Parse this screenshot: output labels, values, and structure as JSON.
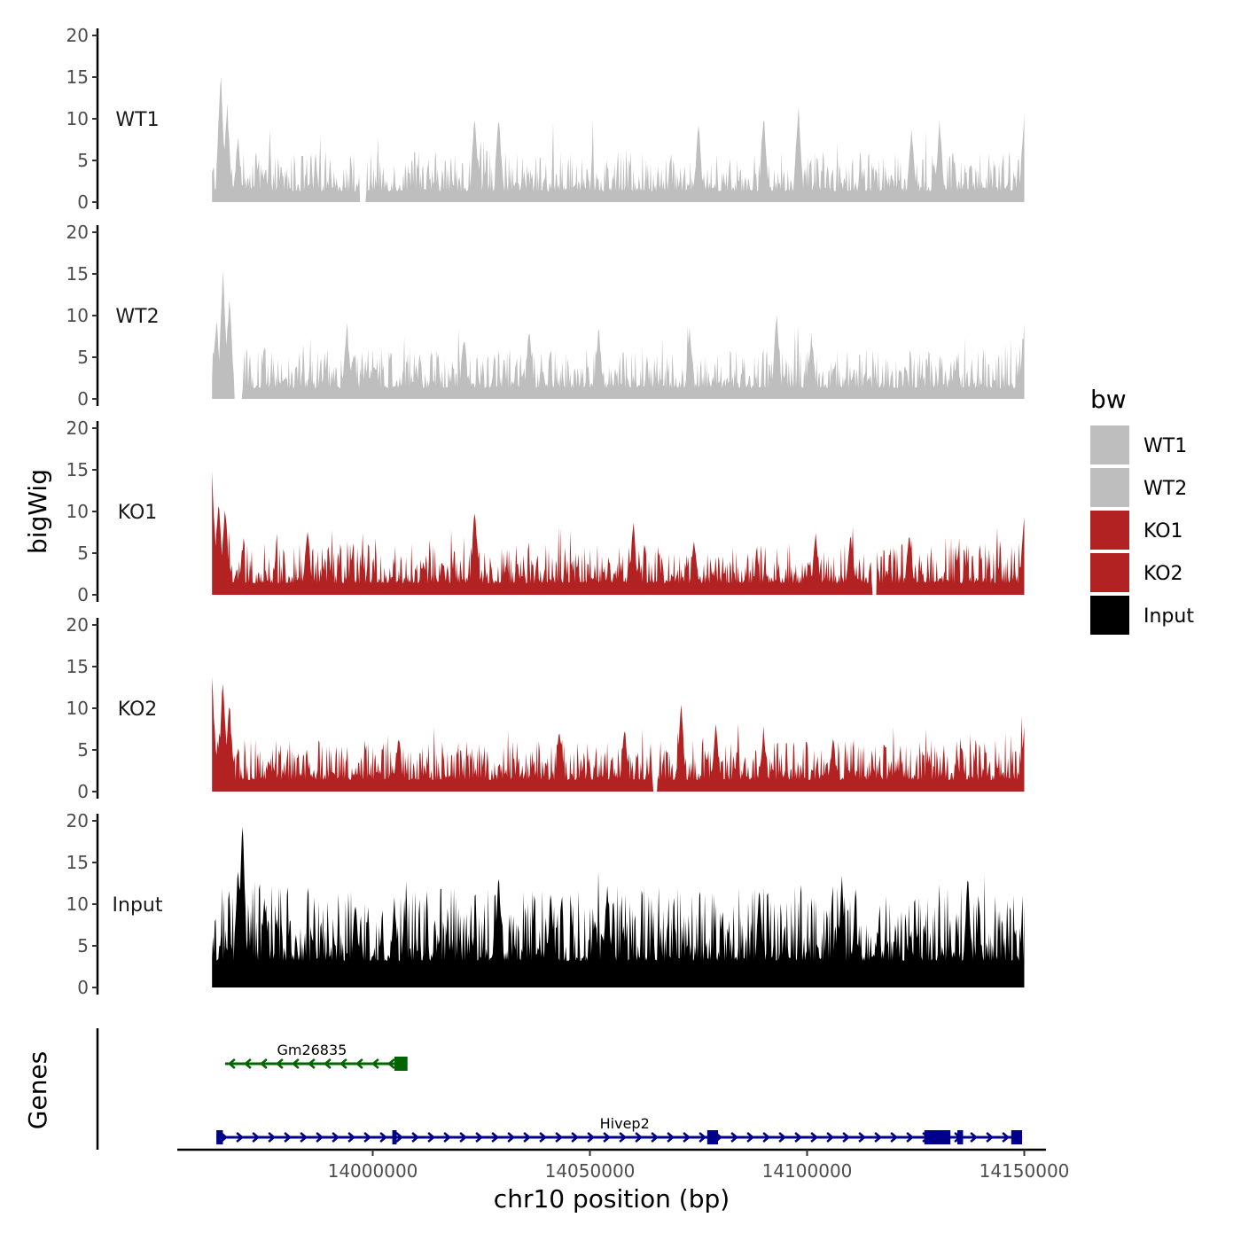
{
  "chart_data": {
    "type": "area",
    "ylabel": "bigWig",
    "genes_label": "Genes",
    "xlabel": "chr10 position (bp)",
    "xlim": [
      13955000,
      14155000
    ],
    "ylim": [
      0,
      20
    ],
    "y_ticks": [
      0,
      5,
      10,
      15,
      20
    ],
    "x_ticks": [
      14000000,
      14050000,
      14100000,
      14150000
    ],
    "region": [
      13963000,
      14150000
    ],
    "tracks": [
      {
        "name": "WT1",
        "color": "#bebebe",
        "peaks": [
          [
            13965000,
            15
          ],
          [
            13966500,
            11
          ],
          [
            13969000,
            7
          ],
          [
            14023500,
            10
          ],
          [
            14029000,
            10
          ],
          [
            14075000,
            9
          ],
          [
            14090000,
            10
          ],
          [
            14098000,
            11
          ],
          [
            14124000,
            8
          ],
          [
            14130500,
            9
          ],
          [
            14150000,
            10
          ]
        ],
        "gaps": [
          [
            13997000,
            13998500
          ]
        ]
      },
      {
        "name": "WT2",
        "color": "#bebebe",
        "peaks": [
          [
            13964000,
            9
          ],
          [
            13965500,
            15
          ],
          [
            13967000,
            12
          ],
          [
            13994000,
            8
          ],
          [
            14021000,
            7
          ],
          [
            14036000,
            8
          ],
          [
            14052000,
            8
          ],
          [
            14073000,
            8
          ],
          [
            14093000,
            10
          ],
          [
            14101000,
            7
          ],
          [
            14150000,
            8
          ]
        ],
        "gaps": [
          [
            13968000,
            13970000
          ]
        ]
      },
      {
        "name": "KO1",
        "color": "#b22222",
        "peaks": [
          [
            13963000,
            14
          ],
          [
            13964500,
            11
          ],
          [
            13966000,
            10
          ],
          [
            13985000,
            7
          ],
          [
            14023500,
            10
          ],
          [
            14060000,
            8
          ],
          [
            14074000,
            6
          ],
          [
            14102000,
            7
          ],
          [
            14110000,
            7
          ],
          [
            14123500,
            7
          ],
          [
            14150000,
            9
          ]
        ],
        "gaps": [
          [
            14115000,
            14116000
          ]
        ]
      },
      {
        "name": "KO2",
        "color": "#b22222",
        "peaks": [
          [
            13963000,
            13
          ],
          [
            13965500,
            13
          ],
          [
            13967000,
            10
          ],
          [
            14006000,
            6
          ],
          [
            14043000,
            7
          ],
          [
            14058000,
            7
          ],
          [
            14071000,
            10
          ],
          [
            14079000,
            8
          ],
          [
            14090000,
            7
          ],
          [
            14106000,
            6
          ],
          [
            14150000,
            7
          ]
        ],
        "gaps": [
          [
            14064500,
            14065500
          ]
        ]
      },
      {
        "name": "Input",
        "color": "#000000",
        "peaks": [
          [
            13970000,
            20
          ],
          [
            13969000,
            14
          ],
          [
            13975000,
            10
          ],
          [
            13996000,
            10
          ],
          [
            14005000,
            10
          ],
          [
            14029000,
            13
          ],
          [
            14041000,
            11
          ],
          [
            14054000,
            12
          ],
          [
            14089000,
            12
          ],
          [
            14108000,
            13
          ],
          [
            14137000,
            13
          ]
        ],
        "gaps": []
      }
    ],
    "genes": [
      {
        "name": "Gm26835",
        "color": "#006400",
        "strand": "-",
        "start": 13966000,
        "end": 14006000,
        "exons": [
          [
            14005000,
            14008000
          ]
        ]
      },
      {
        "name": "Hivep2",
        "color": "#00008b",
        "strand": "+",
        "start": 13964000,
        "end": 14149500,
        "exons": [
          [
            13964000,
            13965500
          ],
          [
            14004500,
            14005500
          ],
          [
            14077000,
            14079500
          ],
          [
            14127000,
            14133000
          ],
          [
            14135000,
            14135500
          ],
          [
            14147000,
            14149500
          ]
        ]
      }
    ],
    "legend": {
      "title": "bw",
      "position": "right",
      "entries": [
        {
          "label": "WT1",
          "color": "#bebebe"
        },
        {
          "label": "WT2",
          "color": "#bebebe"
        },
        {
          "label": "KO1",
          "color": "#b22222"
        },
        {
          "label": "KO2",
          "color": "#b22222"
        },
        {
          "label": "Input",
          "color": "#000000"
        }
      ]
    }
  }
}
